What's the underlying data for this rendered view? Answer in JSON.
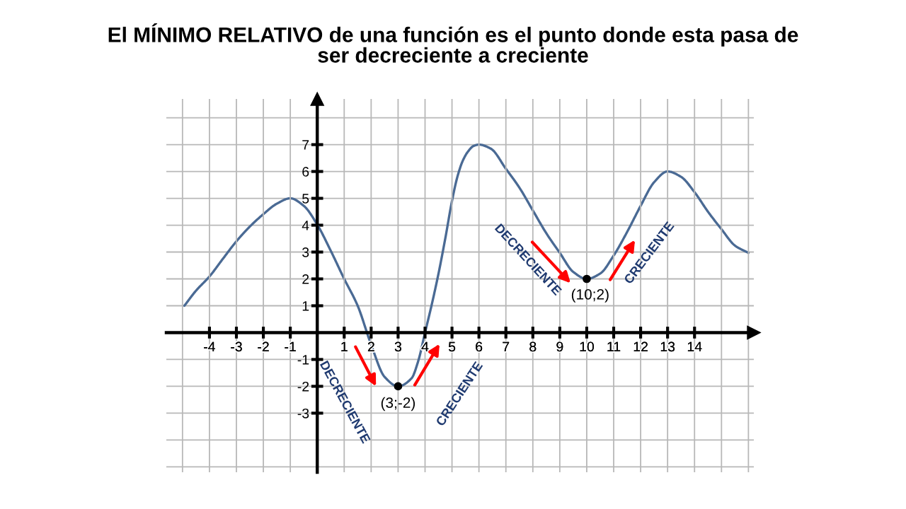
{
  "chart_data": {
    "type": "line",
    "title": "El MÍNIMO RELATIVO de una función es el punto donde esta pasa de\nser decreciente a creciente",
    "series": [
      {
        "color": "#4a6a94",
        "x": [
          -4.93,
          -4.5,
          -4,
          -3.5,
          -3,
          -2.5,
          -2,
          -1.5,
          -1,
          -0.5,
          0,
          0.5,
          1,
          1.5,
          2,
          2.5,
          3,
          3.5,
          3.75,
          4,
          4.25,
          4.5,
          4.75,
          5,
          5.2,
          5.4,
          5.6,
          5.8,
          6,
          6.44,
          7,
          7.5,
          8,
          8.5,
          9,
          9.5,
          10,
          10.5,
          11,
          11.5,
          12,
          12.5,
          13,
          13.5,
          14,
          14.5,
          15,
          15.5,
          16
        ],
        "values": [
          1.0,
          1.56,
          2.09,
          2.75,
          3.4,
          3.95,
          4.41,
          4.8,
          5.0,
          4.72,
          4.02,
          3.05,
          2.0,
          1.0,
          -0.45,
          -1.65,
          -2.0,
          -1.7,
          -1.05,
          0.0,
          1.05,
          2.2,
          3.5,
          4.9,
          5.8,
          6.4,
          6.75,
          6.95,
          7.0,
          6.85,
          6.1,
          5.4,
          4.55,
          3.7,
          2.97,
          2.26,
          2.0,
          2.2,
          2.87,
          3.75,
          4.72,
          5.6,
          6.0,
          5.8,
          5.23,
          4.5,
          3.85,
          3.24,
          2.97
        ]
      },
      {
        "type": "scatter",
        "color": "#000000",
        "marker": "circle",
        "x": [
          3,
          10
        ],
        "values": [
          -2,
          2
        ]
      }
    ],
    "xlim": [
      -5.6,
      16.2
    ],
    "ylim": [
      -5.2,
      8.7
    ],
    "xticks": [
      {
        "value": -5,
        "label": null
      },
      -4,
      -3,
      -2,
      -1,
      {
        "value": 0,
        "label": null
      },
      1,
      2,
      3,
      4,
      5,
      6,
      7,
      8,
      9,
      10,
      11,
      12,
      13,
      14,
      {
        "value": 15,
        "label": null
      },
      {
        "value": 16,
        "label": null
      }
    ],
    "yticks": [
      {
        "value": -5,
        "label": null
      },
      {
        "value": -4,
        "label": null
      },
      -3,
      -2,
      -1,
      {
        "value": 0,
        "label": null
      },
      1,
      2,
      3,
      4,
      5,
      6,
      7,
      {
        "value": 8,
        "label": null
      }
    ],
    "grid": true,
    "annotations": [
      "DECRECIENTE",
      "CRECIENTE",
      "DECRECIENTE",
      "CRECIENTE",
      {
        "text": "(3;-2)",
        "x": 3,
        "y": -2
      },
      {
        "text": "(10;2)",
        "x": 10,
        "y": 2
      }
    ]
  }
}
